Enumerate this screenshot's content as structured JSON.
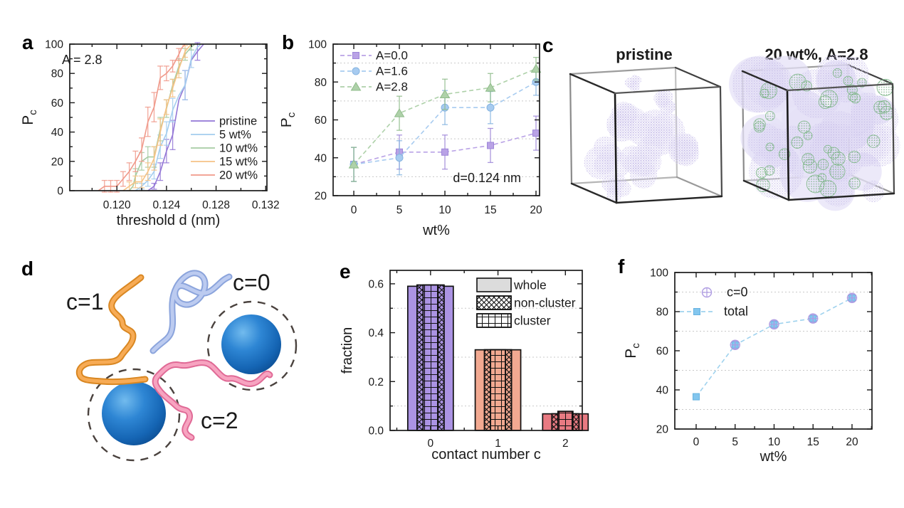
{
  "figure": {
    "background": "#ffffff"
  },
  "panels": {
    "a": {
      "letter": "a",
      "annotation": "A = 2.8",
      "xlabel": "threshold d (nm)",
      "ylabel_base": "P",
      "ylabel_sub": "c",
      "legend_labels": [
        "pristine",
        "5 wt%",
        "10 wt%",
        "15 wt%",
        "20 wt%"
      ]
    },
    "b": {
      "letter": "b",
      "annotation": "d=0.124 nm",
      "xlabel": "wt%",
      "ylabel_base": "P",
      "ylabel_sub": "c",
      "legend_labels": [
        "A=0.0",
        "A=1.6",
        "A=2.8"
      ]
    },
    "c": {
      "letter": "c",
      "left_title": "pristine",
      "right_title": "20 wt%, A=2.8"
    },
    "d": {
      "letter": "d",
      "label_orange": "c=1",
      "label_blue": "c=0",
      "label_pink": "c=2"
    },
    "e": {
      "letter": "e",
      "xlabel": "contact number c",
      "ylabel": "fraction",
      "legend_labels": [
        "whole",
        "non-cluster",
        "cluster"
      ]
    },
    "f": {
      "letter": "f",
      "xlabel": "wt%",
      "ylabel_base": "P",
      "ylabel_sub": "c",
      "legend_labels": [
        "c=0",
        "total"
      ]
    }
  },
  "chart_data": [
    {
      "id": "a",
      "type": "line",
      "title": "",
      "xlabel": "threshold d (nm)",
      "ylabel": "Pc",
      "annotation": "A = 2.8",
      "xlim": [
        0.1162,
        0.1321
      ],
      "ylim": [
        0,
        100
      ],
      "xticks": [
        0.12,
        0.124,
        0.128,
        0.132
      ],
      "xtick_labels": [
        "0.120",
        "0.124",
        "0.128",
        "0.132"
      ],
      "xminor": [
        0.118,
        0.122,
        0.126,
        0.13
      ],
      "yticks": [
        0,
        20,
        40,
        60,
        80,
        100
      ],
      "ytick_labels": [
        "0",
        "20",
        "40",
        "60",
        "80",
        "100"
      ],
      "yminor": [
        10,
        30,
        50,
        70,
        90
      ],
      "grid_y": [],
      "legend_position": "right-center",
      "series": [
        {
          "name": "pristine",
          "color": "#9376d6",
          "dash": "",
          "marker": "",
          "points": [
            [
              0.1225,
              0,
              0
            ],
            [
              0.123,
              3,
              2
            ],
            [
              0.1235,
              13,
              6
            ],
            [
              0.124,
              27,
              8
            ],
            [
              0.1245,
              38,
              10
            ],
            [
              0.125,
              62,
              0
            ],
            [
              0.1255,
              72,
              10
            ],
            [
              0.126,
              89,
              0
            ],
            [
              0.1265,
              95,
              6
            ],
            [
              0.127,
              100,
              0
            ]
          ]
        },
        {
          "name": "5 wt%",
          "color": "#a3cdee",
          "dash": "",
          "marker": "",
          "points": [
            [
              0.1215,
              0,
              0
            ],
            [
              0.122,
              3,
              2
            ],
            [
              0.1225,
              7,
              4
            ],
            [
              0.123,
              13,
              5
            ],
            [
              0.1235,
              30,
              8
            ],
            [
              0.124,
              39,
              8
            ],
            [
              0.1245,
              55,
              8
            ],
            [
              0.125,
              65,
              0
            ],
            [
              0.1255,
              72,
              10
            ],
            [
              0.126,
              90,
              6
            ],
            [
              0.1265,
              98,
              0
            ],
            [
              0.1268,
              100,
              0
            ]
          ]
        },
        {
          "name": "10 wt%",
          "color": "#a6cba2",
          "dash": "",
          "marker": "",
          "points": [
            [
              0.121,
              0,
              0
            ],
            [
              0.1213,
              3,
              0
            ],
            [
              0.1215,
              10,
              5
            ],
            [
              0.122,
              20,
              6
            ],
            [
              0.1225,
              23,
              7
            ],
            [
              0.123,
              23,
              7
            ],
            [
              0.1235,
              42,
              8
            ],
            [
              0.124,
              56,
              6
            ],
            [
              0.1245,
              72,
              4
            ],
            [
              0.125,
              85,
              5
            ],
            [
              0.1255,
              93,
              4
            ],
            [
              0.126,
              98,
              2
            ],
            [
              0.1263,
              100,
              0
            ]
          ]
        },
        {
          "name": "15 wt%",
          "color": "#f6c386",
          "dash": "",
          "marker": "",
          "points": [
            [
              0.1205,
              0,
              0
            ],
            [
              0.121,
              3,
              3
            ],
            [
              0.1215,
              6,
              4
            ],
            [
              0.122,
              6,
              4
            ],
            [
              0.1225,
              13,
              6
            ],
            [
              0.123,
              22,
              8
            ],
            [
              0.1235,
              40,
              9
            ],
            [
              0.124,
              57,
              5
            ],
            [
              0.1245,
              70,
              6
            ],
            [
              0.125,
              83,
              6
            ],
            [
              0.1255,
              95,
              4
            ],
            [
              0.126,
              100,
              0
            ]
          ]
        },
        {
          "name": "20 wt%",
          "color": "#f0998a",
          "dash": "",
          "marker": "",
          "points": [
            [
              0.1185,
              0,
              0
            ],
            [
              0.119,
              3,
              4
            ],
            [
              0.1195,
              3,
              4
            ],
            [
              0.12,
              3,
              4
            ],
            [
              0.1205,
              8,
              5
            ],
            [
              0.121,
              13,
              6
            ],
            [
              0.1215,
              20,
              7
            ],
            [
              0.122,
              28,
              8
            ],
            [
              0.1225,
              47,
              10
            ],
            [
              0.123,
              57,
              10
            ],
            [
              0.1235,
              77,
              8
            ],
            [
              0.124,
              80,
              5
            ],
            [
              0.1245,
              85,
              4
            ],
            [
              0.125,
              93,
              4
            ],
            [
              0.1252,
              97,
              0
            ],
            [
              0.1255,
              100,
              0
            ]
          ]
        }
      ]
    },
    {
      "id": "b",
      "type": "scatter-line",
      "title": "",
      "xlabel": "wt%",
      "ylabel": "Pc",
      "annotation": "d=0.124 nm",
      "xlim": [
        -2.27,
        20.39
      ],
      "ylim": [
        20,
        100
      ],
      "xticks": [
        0,
        5,
        10,
        15,
        20
      ],
      "xtick_labels": [
        "0",
        "5",
        "10",
        "15",
        "20"
      ],
      "xminor": [
        2.5,
        7.5,
        12.5,
        17.5
      ],
      "yticks": [
        20,
        40,
        60,
        80,
        100
      ],
      "ytick_labels": [
        "20",
        "40",
        "60",
        "80",
        "100"
      ],
      "yminor": [
        30,
        50,
        70,
        90
      ],
      "grid_y": [
        30,
        50,
        70,
        90
      ],
      "legend_position": "top-left",
      "series": [
        {
          "name": "A=0.0",
          "color": "#b9a2e6",
          "stroke": "#9d86d8",
          "dash": "6 4",
          "marker": "square",
          "points": [
            [
              0,
              36.5,
              9
            ],
            [
              5,
              43,
              9
            ],
            [
              10,
              43,
              9
            ],
            [
              15,
              46.5,
              9
            ],
            [
              20,
              53,
              9
            ]
          ]
        },
        {
          "name": "A=1.6",
          "color": "#a7cbf0",
          "stroke": "#86b4e0",
          "dash": "6 4",
          "marker": "circle",
          "points": [
            [
              0,
              36.5,
              9
            ],
            [
              5,
              40,
              9
            ],
            [
              10,
              66.5,
              9
            ],
            [
              15,
              66.5,
              8.5
            ],
            [
              20,
              80,
              7
            ]
          ]
        },
        {
          "name": "A=2.8",
          "color": "#aed1a9",
          "stroke": "#8fbc8a",
          "dash": "6 4",
          "marker": "triangle",
          "points": [
            [
              0,
              36.5,
              9
            ],
            [
              5,
              63.5,
              9
            ],
            [
              10,
              73.5,
              8
            ],
            [
              15,
              77,
              7.5
            ],
            [
              20,
              87,
              6
            ]
          ]
        }
      ]
    },
    {
      "id": "e",
      "type": "bar",
      "title": "",
      "xlabel": "contact number c",
      "ylabel": "fraction",
      "categories": [
        "0",
        "1",
        "2"
      ],
      "category_values": [
        0,
        1,
        2
      ],
      "category_colors": [
        "#ab93e3",
        "#f2a991",
        "#e87a82"
      ],
      "xlim": [
        -0.6,
        2.25
      ],
      "ylim": [
        0,
        0.655
      ],
      "xminor": [
        -0.5,
        0.5,
        1.5
      ],
      "yticks": [
        0,
        0.2,
        0.4,
        0.6
      ],
      "ytick_labels": [
        "0.0",
        "0.2",
        "0.4",
        "0.6"
      ],
      "yminor": [
        0.1,
        0.3,
        0.5
      ],
      "grid_y": [
        0.1,
        0.3,
        0.5
      ],
      "legend_position": "top-right",
      "series": [
        {
          "name": "whole",
          "pattern": "plain",
          "values": [
            0.59,
            0.33,
            0.068
          ]
        },
        {
          "name": "non-cluster",
          "pattern": "crosshatch",
          "values": [
            0.595,
            0.33,
            0.068
          ]
        },
        {
          "name": "cluster",
          "pattern": "grid",
          "values": [
            0.595,
            0.33,
            0.078
          ]
        }
      ]
    },
    {
      "id": "f",
      "type": "scatter-line",
      "title": "",
      "xlabel": "wt%",
      "ylabel": "Pc",
      "annotation": "",
      "xlim": [
        -2.74,
        22.56
      ],
      "ylim": [
        20,
        100
      ],
      "xticks": [
        0,
        5,
        10,
        15,
        20
      ],
      "xtick_labels": [
        "0",
        "5",
        "10",
        "15",
        "20"
      ],
      "xminor": [
        2.5,
        7.5,
        12.5,
        17.5,
        22.5
      ],
      "yticks": [
        20,
        40,
        60,
        80,
        100
      ],
      "ytick_labels": [
        "20",
        "40",
        "60",
        "80",
        "100"
      ],
      "yminor": [
        30,
        50,
        70,
        90
      ],
      "grid_y": [
        30,
        50,
        70,
        90
      ],
      "legend_position": "top-left",
      "series": [
        {
          "name": "total",
          "color": "#83c6ee",
          "stroke": "#66b2e0",
          "line_color": "#9fd2ee",
          "dash": "6 4",
          "marker": "square",
          "points": [
            [
              0,
              36.5,
              0
            ],
            [
              5,
              63,
              0
            ],
            [
              10,
              73.5,
              0
            ],
            [
              15,
              76.5,
              0
            ],
            [
              20,
              87,
              0
            ]
          ]
        },
        {
          "name": "c=0",
          "color": "none",
          "stroke": "#af9ce2",
          "dash": "",
          "marker": "circleplus",
          "line": "none",
          "points": [
            [
              5,
              63,
              2
            ],
            [
              10,
              73.5,
              2
            ],
            [
              15,
              76.5,
              2
            ],
            [
              20,
              87,
              2
            ]
          ]
        }
      ]
    }
  ],
  "colors": {
    "axis": "#1a1a1a",
    "grid": "#c9c9c9",
    "lavender_fill": "#cfc7ec",
    "green_particle": "#74ac80",
    "sphere_blue": "#1e79c6",
    "chain_orange": "#f5a04a",
    "chain_blue": "#a9bfea",
    "chain_pink": "#f190b0"
  }
}
